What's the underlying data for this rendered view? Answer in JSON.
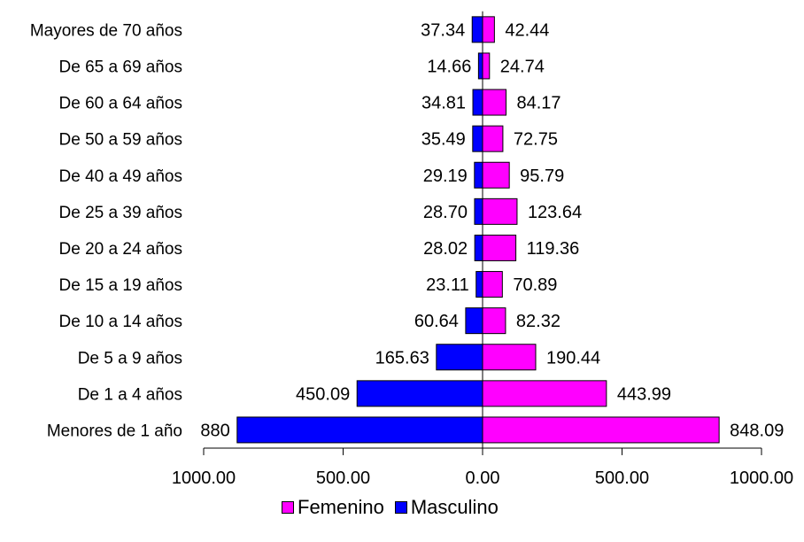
{
  "chart_data": {
    "type": "bar",
    "orientation": "horizontal-butterfly",
    "categories": [
      "Menores de 1 año",
      "De 1 a 4 años",
      "De 5 a 9 años",
      "De 10 a 14 años",
      "De 15 a 19 años",
      "De 20 a 24 años",
      "De 25 a 39 años",
      "De 40 a 49 años",
      "De 50 a 59 años",
      "De 60 a 64 años",
      "De 65 a 69 años",
      "Mayores de 70 años"
    ],
    "series": [
      {
        "name": "Masculino",
        "color": "#0000FF",
        "side": "left",
        "values": [
          880,
          450.09,
          165.63,
          60.64,
          23.11,
          28.02,
          28.7,
          29.19,
          35.49,
          34.81,
          14.66,
          37.34
        ],
        "labels": [
          "880",
          "450.09",
          "165.63",
          "60.64",
          "23.11",
          "28.02",
          "28.70",
          "29.19",
          "35.49",
          "34.81",
          "14.66",
          "37.34"
        ]
      },
      {
        "name": "Femenino",
        "color": "#FF00FF",
        "side": "right",
        "values": [
          848.09,
          443.99,
          190.44,
          82.32,
          70.89,
          119.36,
          123.64,
          95.79,
          72.75,
          84.17,
          24.74,
          42.44
        ],
        "labels": [
          "848.09",
          "443.99",
          "190.44",
          "82.32",
          "70.89",
          "119.36",
          "123.64",
          "95.79",
          "72.75",
          "84.17",
          "24.74",
          "42.44"
        ]
      }
    ],
    "x_ticks": [
      "1000.00",
      "500.00",
      "0.00",
      "500.00",
      "1000.00"
    ],
    "xlim": [
      -1000,
      1000
    ],
    "legend_order": [
      "Femenino",
      "Masculino"
    ],
    "legend_position": "bottom",
    "grid": false
  }
}
